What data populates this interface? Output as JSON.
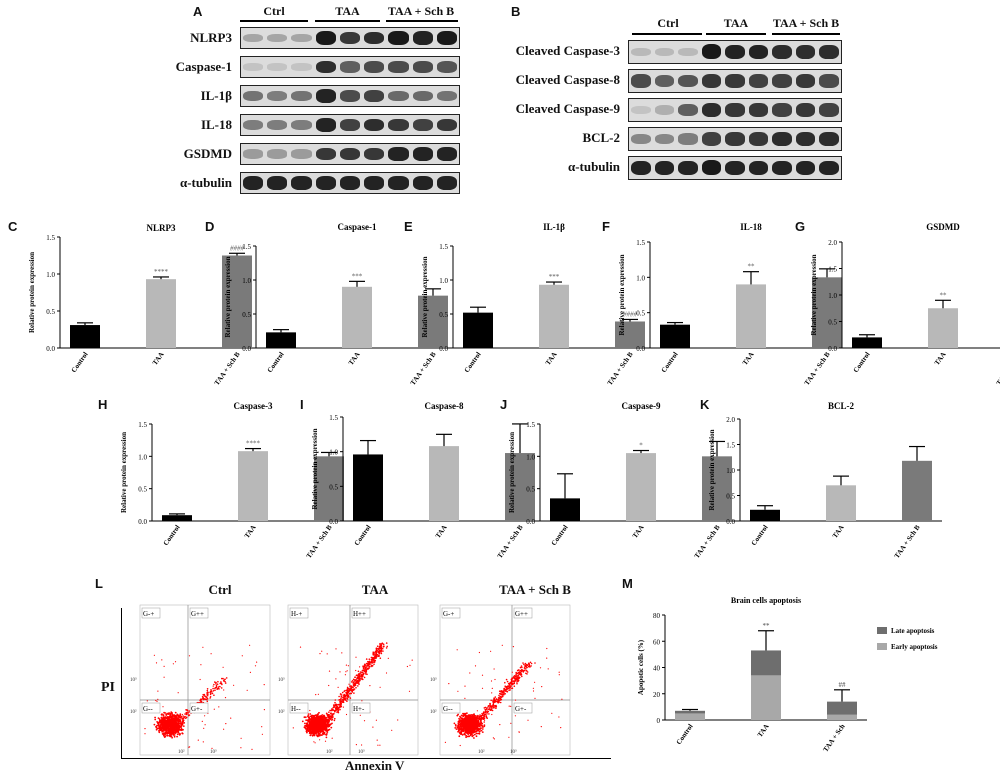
{
  "panel_letters": [
    "A",
    "B",
    "C",
    "D",
    "E",
    "F",
    "G",
    "H",
    "I",
    "J",
    "K",
    "L",
    "M"
  ],
  "blot_A": {
    "groups": [
      "Ctrl",
      "TAA",
      "TAA + Sch B"
    ],
    "rows": [
      {
        "label": "NLRP3",
        "intensity": [
          0.25,
          0.25,
          0.25,
          0.95,
          0.8,
          0.85,
          0.95,
          0.9,
          0.95
        ]
      },
      {
        "label": "Caspase-1",
        "intensity": [
          0.1,
          0.1,
          0.1,
          0.85,
          0.6,
          0.7,
          0.7,
          0.7,
          0.65
        ]
      },
      {
        "label": "IL-1β",
        "intensity": [
          0.5,
          0.45,
          0.5,
          0.9,
          0.7,
          0.75,
          0.55,
          0.55,
          0.5
        ]
      },
      {
        "label": "IL-18",
        "intensity": [
          0.45,
          0.45,
          0.45,
          0.9,
          0.75,
          0.85,
          0.8,
          0.75,
          0.8
        ]
      },
      {
        "label": "GSDMD",
        "intensity": [
          0.3,
          0.3,
          0.3,
          0.8,
          0.8,
          0.8,
          0.9,
          0.9,
          0.9
        ]
      },
      {
        "label": "α-tubulin",
        "intensity": [
          0.9,
          0.9,
          0.9,
          0.9,
          0.9,
          0.9,
          0.9,
          0.9,
          0.9
        ]
      }
    ]
  },
  "blot_B": {
    "groups": [
      "Ctrl",
      "TAA",
      "TAA + Sch B"
    ],
    "rows": [
      {
        "label": "Cleaved Caspase-3",
        "intensity": [
          0.15,
          0.15,
          0.15,
          0.95,
          0.9,
          0.9,
          0.85,
          0.85,
          0.85
        ]
      },
      {
        "label": "Cleaved Caspase-8",
        "intensity": [
          0.7,
          0.6,
          0.65,
          0.8,
          0.8,
          0.75,
          0.75,
          0.8,
          0.7
        ]
      },
      {
        "label": "Cleaved Caspase-9",
        "intensity": [
          0.1,
          0.2,
          0.6,
          0.85,
          0.8,
          0.8,
          0.75,
          0.8,
          0.75
        ]
      },
      {
        "label": "BCL-2",
        "intensity": [
          0.4,
          0.4,
          0.45,
          0.75,
          0.8,
          0.8,
          0.85,
          0.85,
          0.85
        ]
      },
      {
        "label": "α-tubulin",
        "intensity": [
          0.9,
          0.9,
          0.9,
          0.95,
          0.9,
          0.9,
          0.9,
          0.9,
          0.9
        ]
      }
    ]
  },
  "y_axis_label": "Relative protein expression",
  "chart_data": [
    {
      "panel": "C",
      "type": "bar",
      "title": "NLRP3",
      "categories": [
        "Control",
        "TAA",
        "TAA + Sch B"
      ],
      "values": [
        0.31,
        0.93,
        1.25
      ],
      "errors": [
        0.03,
        0.03,
        0.03
      ],
      "sig": [
        "",
        "****",
        "####"
      ],
      "ylim": [
        0,
        1.5
      ],
      "yticks": [
        "0.0",
        "0.5",
        "1.0",
        "1.5"
      ],
      "tick_values": [
        0,
        0.5,
        1.0,
        1.5
      ],
      "colors": [
        "#000000",
        "#b8b8b8",
        "#7a7a7a"
      ]
    },
    {
      "panel": "D",
      "type": "bar",
      "title": "Caspase-1",
      "categories": [
        "Control",
        "TAA",
        "TAA + Sch B"
      ],
      "values": [
        0.23,
        0.9,
        0.77
      ],
      "errors": [
        0.04,
        0.08,
        0.1
      ],
      "sig": [
        "",
        "***",
        ""
      ],
      "ylim": [
        0,
        1.5
      ],
      "yticks": [
        "0.0",
        "0.5",
        "1.0",
        "1.5"
      ],
      "tick_values": [
        0,
        0.5,
        1.0,
        1.5
      ],
      "colors": [
        "#000000",
        "#b8b8b8",
        "#7a7a7a"
      ]
    },
    {
      "panel": "E",
      "type": "bar",
      "title": "IL-1β",
      "categories": [
        "Control",
        "TAA",
        "TAA + Sch B"
      ],
      "values": [
        0.52,
        0.93,
        0.39
      ],
      "errors": [
        0.08,
        0.04,
        0.03
      ],
      "sig": [
        "",
        "***",
        "####"
      ],
      "ylim": [
        0,
        1.5
      ],
      "yticks": [
        "0.0",
        "0.5",
        "1.0",
        "1.5"
      ],
      "tick_values": [
        0,
        0.5,
        1.0,
        1.5
      ],
      "colors": [
        "#000000",
        "#b8b8b8",
        "#7a7a7a"
      ]
    },
    {
      "panel": "F",
      "type": "bar",
      "title": "IL-18",
      "categories": [
        "Control",
        "TAA",
        "TAA + Sch B"
      ],
      "values": [
        0.33,
        0.9,
        1.0
      ],
      "errors": [
        0.03,
        0.18,
        0.12
      ],
      "sig": [
        "",
        "**",
        ""
      ],
      "ylim": [
        0,
        1.5
      ],
      "yticks": [
        "0.0",
        "0.5",
        "1.0",
        "1.5"
      ],
      "tick_values": [
        0,
        0.5,
        1.0,
        1.5
      ],
      "colors": [
        "#000000",
        "#b8b8b8",
        "#7a7a7a"
      ]
    },
    {
      "panel": "G",
      "type": "bar",
      "title": "GSDMD",
      "categories": [
        "Control",
        "TAA",
        "TAA + Sch B"
      ],
      "values": [
        0.2,
        0.75,
        1.35
      ],
      "errors": [
        0.05,
        0.15,
        0.18
      ],
      "sig": [
        "",
        "**",
        "##"
      ],
      "ylim": [
        0,
        2.0
      ],
      "yticks": [
        "0.0",
        "0.5",
        "1.0",
        "1.5",
        "2.0"
      ],
      "tick_values": [
        0,
        0.5,
        1.0,
        1.5,
        2.0
      ],
      "colors": [
        "#000000",
        "#b8b8b8",
        "#7a7a7a"
      ]
    },
    {
      "panel": "H",
      "type": "bar",
      "title": "Caspase-3",
      "categories": [
        "Control",
        "TAA",
        "TAA + Sch B"
      ],
      "values": [
        0.09,
        1.08,
        1.0
      ],
      "errors": [
        0.02,
        0.04,
        0.06
      ],
      "sig": [
        "",
        "****",
        ""
      ],
      "ylim": [
        0,
        1.5
      ],
      "yticks": [
        "0.0",
        "0.5",
        "1.0",
        "1.5"
      ],
      "tick_values": [
        0,
        0.5,
        1.0,
        1.5
      ],
      "colors": [
        "#000000",
        "#b8b8b8",
        "#7a7a7a"
      ]
    },
    {
      "panel": "I",
      "type": "bar",
      "title": "Caspase-8",
      "categories": [
        "Control",
        "TAA",
        "TAA + Sch B"
      ],
      "values": [
        0.96,
        1.08,
        0.98
      ],
      "errors": [
        0.2,
        0.17,
        0.42
      ],
      "sig": [
        "",
        "",
        ""
      ],
      "ylim": [
        0,
        1.5
      ],
      "yticks": [
        "0.0",
        "0.5",
        "1.0",
        "1.5"
      ],
      "tick_values": [
        0,
        0.5,
        1.0,
        1.5
      ],
      "colors": [
        "#000000",
        "#b8b8b8",
        "#7a7a7a"
      ]
    },
    {
      "panel": "J",
      "type": "bar",
      "title": "Caspase-9",
      "categories": [
        "Control",
        "TAA",
        "TAA + Sch B"
      ],
      "values": [
        0.35,
        1.05,
        1.0
      ],
      "errors": [
        0.38,
        0.04,
        0.23
      ],
      "sig": [
        "",
        "*",
        ""
      ],
      "ylim": [
        0,
        1.5
      ],
      "yticks": [
        "0.0",
        "0.5",
        "1.0",
        "1.5"
      ],
      "tick_values": [
        0,
        0.5,
        1.0,
        1.5
      ],
      "colors": [
        "#000000",
        "#b8b8b8",
        "#7a7a7a"
      ]
    },
    {
      "panel": "K",
      "type": "bar",
      "title": "BCL-2",
      "categories": [
        "Control",
        "TAA",
        "TAA + Sch B"
      ],
      "values": [
        0.22,
        0.7,
        1.18
      ],
      "errors": [
        0.08,
        0.18,
        0.28
      ],
      "sig": [
        "",
        "",
        ""
      ],
      "ylim": [
        0,
        2.0
      ],
      "yticks": [
        "0.0",
        "0.5",
        "1.0",
        "1.5",
        "2.0"
      ],
      "tick_values": [
        0,
        0.5,
        1.0,
        1.5,
        2.0
      ],
      "colors": [
        "#000000",
        "#b8b8b8",
        "#7a7a7a"
      ]
    },
    {
      "panel": "M",
      "type": "bar",
      "title": "Brain cells apoptosis",
      "categories": [
        "Control",
        "TAA",
        "TAA + Sch"
      ],
      "stacked": true,
      "series": [
        {
          "name": "Early apoptosis",
          "values": [
            5,
            34,
            4
          ],
          "color": "#a8a8a8"
        },
        {
          "name": "Late apoptosis",
          "values": [
            2,
            19,
            10
          ],
          "color": "#6e6e6e"
        }
      ],
      "errors": [
        1,
        15,
        9
      ],
      "sig": [
        "",
        "**",
        "##"
      ],
      "ylabel": "Apopotic cells (%)",
      "ylim": [
        0,
        80
      ],
      "yticks": [
        "0",
        "20",
        "40",
        "60",
        "80"
      ],
      "tick_values": [
        0,
        20,
        40,
        60,
        80
      ],
      "legend": "right"
    }
  ],
  "flow_L": {
    "groups": [
      "Ctrl",
      "TAA",
      "TAA + Sch B"
    ],
    "quadrant_labels": [
      [
        "G-+",
        "G++",
        "G--",
        "G+-"
      ],
      [
        "H-+",
        "H++",
        "H--",
        "H+-"
      ],
      [
        "G-+",
        "G++",
        "G--",
        "G+-"
      ]
    ],
    "y_label": "PI",
    "x_label": "Annexin V",
    "axis_ticks": [
      "10²",
      "10³"
    ],
    "point_color": "#ff0000"
  }
}
